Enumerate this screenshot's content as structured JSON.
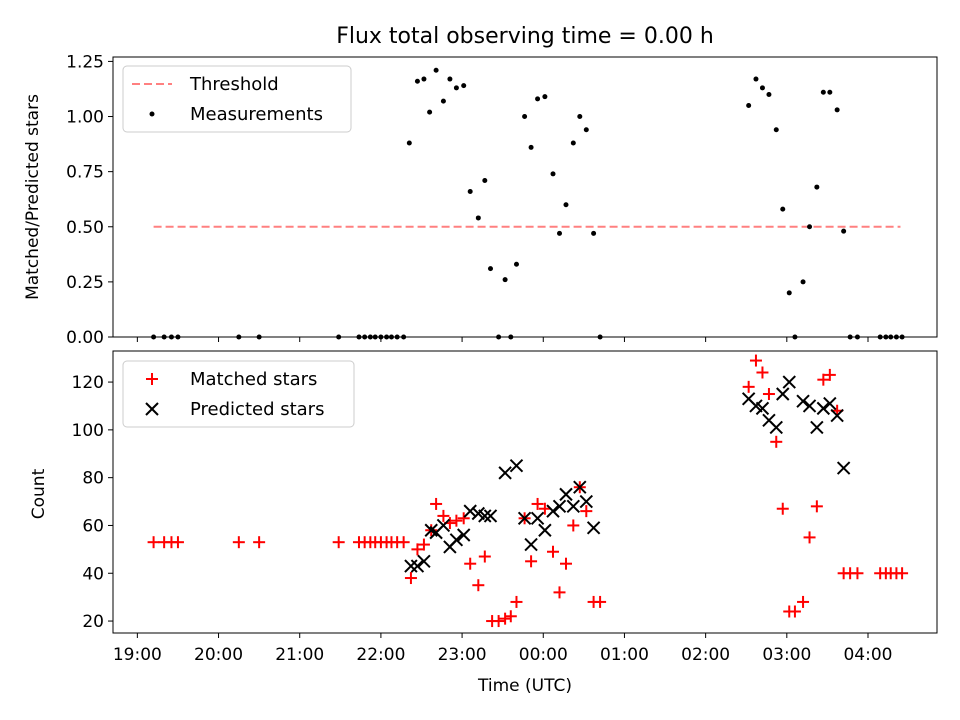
{
  "chart_data": [
    {
      "type": "scatter",
      "title": "Flux total observing time = 0.00 h",
      "xlabel": "",
      "ylabel": "Matched/Predicted stars",
      "ylim": [
        0,
        1.27
      ],
      "yticks": [
        0.0,
        0.25,
        0.5,
        0.75,
        1.0,
        1.25
      ],
      "ytick_labels": [
        "0.00",
        "0.25",
        "0.50",
        "0.75",
        "1.00",
        "1.25"
      ],
      "legend_position": "top-left",
      "threshold": {
        "name": "Threshold",
        "value": 0.5,
        "x_range": [
          19.2,
          28.4
        ],
        "color": "#ff8080"
      },
      "series": [
        {
          "name": "Measurements",
          "color": "#000000",
          "marker": "dot",
          "points": [
            [
              19.2,
              0.0
            ],
            [
              19.33,
              0.0
            ],
            [
              19.42,
              0.0
            ],
            [
              19.5,
              0.0
            ],
            [
              20.25,
              0.0
            ],
            [
              20.5,
              0.0
            ],
            [
              21.48,
              0.0
            ],
            [
              21.73,
              0.0
            ],
            [
              21.8,
              0.0
            ],
            [
              21.87,
              0.0
            ],
            [
              21.93,
              0.0
            ],
            [
              22.0,
              0.0
            ],
            [
              22.07,
              0.0
            ],
            [
              22.13,
              0.0
            ],
            [
              22.2,
              0.0
            ],
            [
              22.28,
              0.0
            ],
            [
              22.35,
              0.88
            ],
            [
              22.45,
              1.16
            ],
            [
              22.53,
              1.17
            ],
            [
              22.6,
              1.02
            ],
            [
              22.68,
              1.21
            ],
            [
              22.77,
              1.07
            ],
            [
              22.85,
              1.17
            ],
            [
              22.93,
              1.13
            ],
            [
              23.02,
              1.14
            ],
            [
              23.1,
              0.66
            ],
            [
              23.2,
              0.54
            ],
            [
              23.28,
              0.71
            ],
            [
              23.35,
              0.31
            ],
            [
              23.45,
              0.0
            ],
            [
              23.53,
              0.26
            ],
            [
              23.6,
              0.0
            ],
            [
              23.67,
              0.33
            ],
            [
              23.77,
              1.0
            ],
            [
              23.85,
              0.86
            ],
            [
              23.93,
              1.08
            ],
            [
              24.02,
              1.09
            ],
            [
              24.12,
              0.74
            ],
            [
              24.2,
              0.47
            ],
            [
              24.28,
              0.6
            ],
            [
              24.37,
              0.88
            ],
            [
              24.45,
              1.0
            ],
            [
              24.53,
              0.94
            ],
            [
              24.62,
              0.47
            ],
            [
              24.7,
              0.0
            ],
            [
              26.53,
              1.05
            ],
            [
              26.62,
              1.17
            ],
            [
              26.7,
              1.13
            ],
            [
              26.78,
              1.1
            ],
            [
              26.87,
              0.94
            ],
            [
              26.95,
              0.58
            ],
            [
              27.03,
              0.2
            ],
            [
              27.1,
              0.0
            ],
            [
              27.2,
              0.25
            ],
            [
              27.28,
              0.5
            ],
            [
              27.37,
              0.68
            ],
            [
              27.45,
              1.11
            ],
            [
              27.53,
              1.11
            ],
            [
              27.62,
              1.03
            ],
            [
              27.7,
              0.48
            ],
            [
              27.78,
              0.0
            ],
            [
              27.87,
              0.0
            ],
            [
              28.15,
              0.0
            ],
            [
              28.22,
              0.0
            ],
            [
              28.28,
              0.0
            ],
            [
              28.35,
              0.0
            ],
            [
              28.42,
              0.0
            ]
          ]
        }
      ]
    },
    {
      "type": "scatter",
      "title": "",
      "xlabel": "Time (UTC)",
      "ylabel": "Count",
      "ylim": [
        15,
        133
      ],
      "yticks": [
        20,
        40,
        60,
        80,
        100,
        120
      ],
      "xticks": [
        19,
        20,
        21,
        22,
        23,
        24,
        25,
        26,
        27,
        28
      ],
      "xtick_labels": [
        "19:00",
        "20:00",
        "21:00",
        "22:00",
        "23:00",
        "00:00",
        "01:00",
        "02:00",
        "03:00",
        "04:00"
      ],
      "xlim": [
        18.7,
        28.85
      ],
      "legend_position": "top-left",
      "series": [
        {
          "name": "Matched stars",
          "color": "#ff0000",
          "marker": "plus",
          "points": [
            [
              19.2,
              53
            ],
            [
              19.33,
              53
            ],
            [
              19.42,
              53
            ],
            [
              19.5,
              53
            ],
            [
              20.25,
              53
            ],
            [
              20.5,
              53
            ],
            [
              21.48,
              53
            ],
            [
              21.73,
              53
            ],
            [
              21.8,
              53
            ],
            [
              21.87,
              53
            ],
            [
              21.93,
              53
            ],
            [
              22.0,
              53
            ],
            [
              22.07,
              53
            ],
            [
              22.13,
              53
            ],
            [
              22.2,
              53
            ],
            [
              22.28,
              53
            ],
            [
              22.37,
              38
            ],
            [
              22.45,
              50
            ],
            [
              22.53,
              52
            ],
            [
              22.62,
              58
            ],
            [
              22.68,
              69
            ],
            [
              22.77,
              64
            ],
            [
              22.85,
              61
            ],
            [
              22.93,
              62
            ],
            [
              23.02,
              63
            ],
            [
              23.1,
              44
            ],
            [
              23.2,
              35
            ],
            [
              23.28,
              47
            ],
            [
              23.37,
              20
            ],
            [
              23.45,
              20
            ],
            [
              23.53,
              21
            ],
            [
              23.6,
              22
            ],
            [
              23.67,
              28
            ],
            [
              23.77,
              63
            ],
            [
              23.85,
              45
            ],
            [
              23.93,
              69
            ],
            [
              24.02,
              67
            ],
            [
              24.12,
              49
            ],
            [
              24.2,
              32
            ],
            [
              24.28,
              44
            ],
            [
              24.37,
              60
            ],
            [
              24.45,
              76
            ],
            [
              24.53,
              66
            ],
            [
              24.62,
              28
            ],
            [
              24.7,
              28
            ],
            [
              26.53,
              118
            ],
            [
              26.62,
              129
            ],
            [
              26.7,
              124
            ],
            [
              26.78,
              115
            ],
            [
              26.87,
              95
            ],
            [
              26.95,
              67
            ],
            [
              27.03,
              24
            ],
            [
              27.1,
              24
            ],
            [
              27.2,
              28
            ],
            [
              27.28,
              55
            ],
            [
              27.37,
              68
            ],
            [
              27.45,
              121
            ],
            [
              27.53,
              123
            ],
            [
              27.62,
              108
            ],
            [
              27.7,
              40
            ],
            [
              27.78,
              40
            ],
            [
              27.87,
              40
            ],
            [
              28.15,
              40
            ],
            [
              28.22,
              40
            ],
            [
              28.28,
              40
            ],
            [
              28.35,
              40
            ],
            [
              28.42,
              40
            ]
          ]
        },
        {
          "name": "Predicted stars",
          "color": "#000000",
          "marker": "x",
          "points": [
            [
              22.37,
              43
            ],
            [
              22.45,
              43
            ],
            [
              22.53,
              45
            ],
            [
              22.62,
              58
            ],
            [
              22.68,
              57
            ],
            [
              22.77,
              60
            ],
            [
              22.85,
              51
            ],
            [
              22.93,
              54
            ],
            [
              23.02,
              56
            ],
            [
              23.1,
              66
            ],
            [
              23.2,
              65
            ],
            [
              23.28,
              64
            ],
            [
              23.35,
              64
            ],
            [
              23.53,
              82
            ],
            [
              23.67,
              85
            ],
            [
              23.77,
              63
            ],
            [
              23.85,
              52
            ],
            [
              23.93,
              63
            ],
            [
              24.02,
              58
            ],
            [
              24.12,
              66
            ],
            [
              24.2,
              68
            ],
            [
              24.28,
              73
            ],
            [
              24.37,
              68
            ],
            [
              24.45,
              76
            ],
            [
              24.53,
              70
            ],
            [
              24.62,
              59
            ],
            [
              26.53,
              113
            ],
            [
              26.62,
              110
            ],
            [
              26.7,
              109
            ],
            [
              26.78,
              104
            ],
            [
              26.87,
              101
            ],
            [
              26.95,
              115
            ],
            [
              27.03,
              120
            ],
            [
              27.2,
              112
            ],
            [
              27.28,
              110
            ],
            [
              27.37,
              101
            ],
            [
              27.45,
              109
            ],
            [
              27.53,
              111
            ],
            [
              27.62,
              106
            ],
            [
              27.7,
              84
            ]
          ]
        }
      ]
    }
  ]
}
